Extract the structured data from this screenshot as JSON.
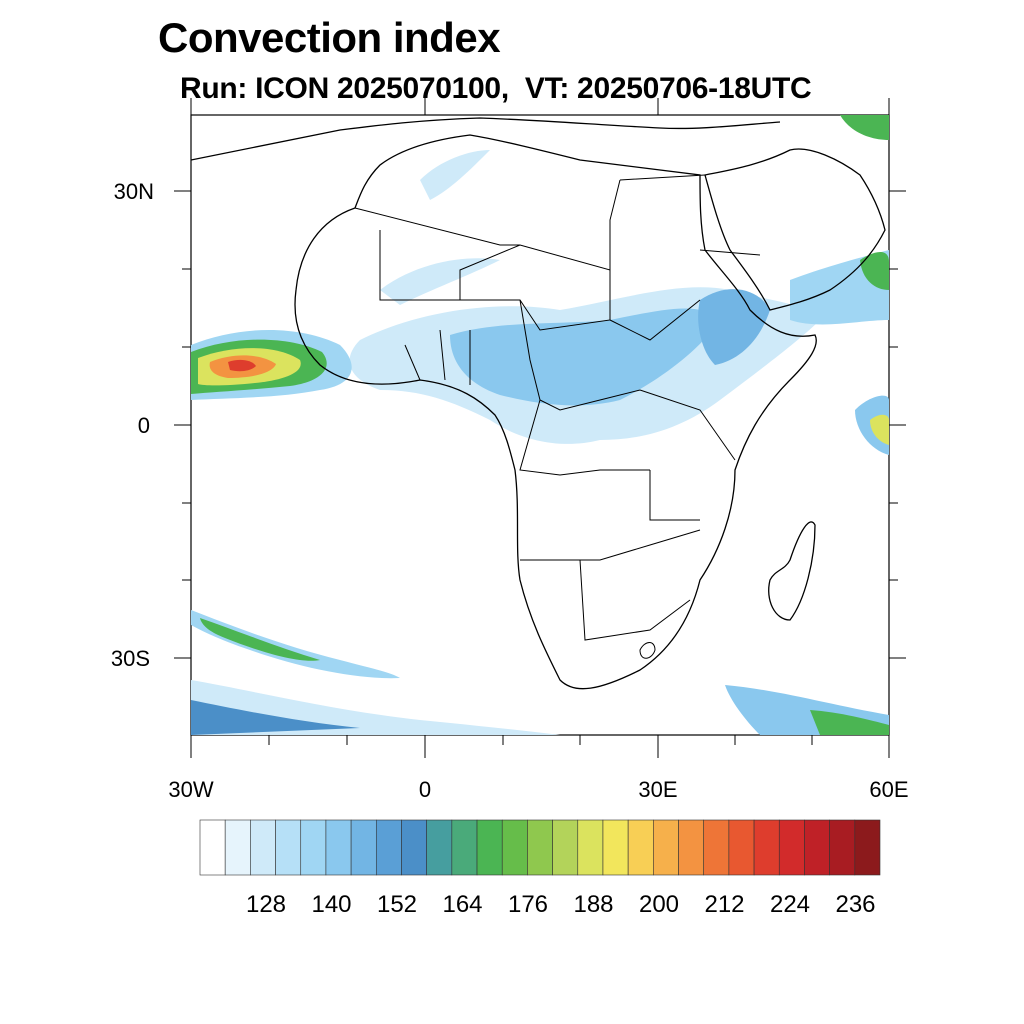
{
  "title": "Convection index",
  "subtitle": "Run: ICON 2025070100,  VT: 20250706-18UTC",
  "map": {
    "region": "Africa",
    "lon_range": [
      -30,
      60
    ],
    "lat_range": [
      -40,
      40
    ],
    "y_tick_labels": [
      "30N",
      "0",
      "30S"
    ],
    "x_tick_labels": [
      "30W",
      "0",
      "30E",
      "60E"
    ]
  },
  "colorbar": {
    "colors": [
      "#ffffff",
      "#e6f4fc",
      "#cfeaf9",
      "#b6e0f7",
      "#a0d6f3",
      "#8ac8ee",
      "#72b5e4",
      "#5a9fd6",
      "#4b8fc8",
      "#469e9f",
      "#4aaa7a",
      "#4bb553",
      "#66bd4a",
      "#8fc84e",
      "#b3d35a",
      "#dbe35e",
      "#f2e65c",
      "#f8cf55",
      "#f6b04b",
      "#f39341",
      "#ee7537",
      "#e85830",
      "#de3d2d",
      "#d22b2b",
      "#bf2127",
      "#a81c22",
      "#8c1a1c"
    ],
    "labels": [
      "128",
      "140",
      "152",
      "164",
      "176",
      "188",
      "200",
      "212",
      "224",
      "236"
    ]
  },
  "icons": [
    "map-plot"
  ]
}
